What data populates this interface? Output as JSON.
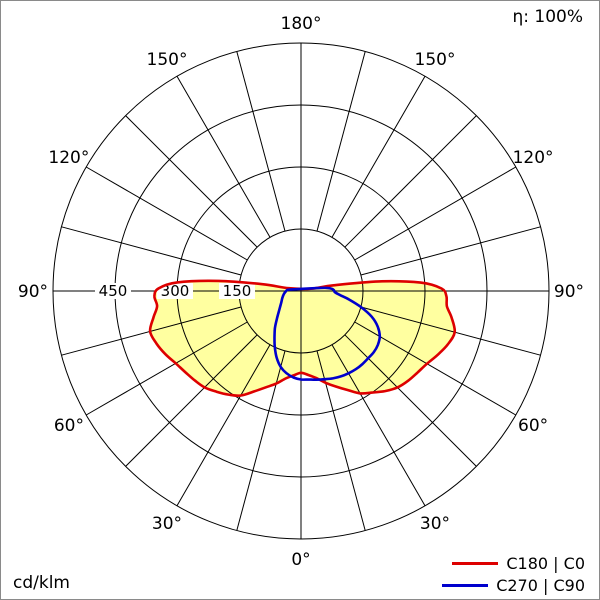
{
  "chart_data": {
    "type": "polar",
    "subtype": "luminous-intensity-distribution",
    "labels": {
      "efficiency": "η: 100%",
      "unit": "cd/klm"
    },
    "rings_cd_per_klm": [
      150,
      300,
      450,
      600
    ],
    "ring_labels": [
      "150",
      "300",
      "450"
    ],
    "grid_angle_step_deg": 15,
    "angle_labels": [
      "0°",
      "30°",
      "60°",
      "90°",
      "120°",
      "150°",
      "180°"
    ],
    "legend": [
      {
        "label": "C180 | C0",
        "color": "#dd0000"
      },
      {
        "label": "C270 | C90",
        "color": "#0000cd"
      }
    ],
    "series": [
      {
        "name": "C180 | C0",
        "color": "#dd0000",
        "fill": "#ffffa0",
        "left_gamma_intensity": [
          [
            103,
            30
          ],
          [
            100,
            95
          ],
          [
            97,
            200
          ],
          [
            94,
            300
          ],
          [
            91,
            345
          ],
          [
            88,
            355
          ],
          [
            84,
            350
          ],
          [
            80,
            362
          ],
          [
            75,
            378
          ],
          [
            70,
            372
          ],
          [
            65,
            362
          ],
          [
            60,
            350
          ],
          [
            55,
            342
          ],
          [
            50,
            336
          ],
          [
            45,
            330
          ],
          [
            40,
            318
          ],
          [
            35,
            306
          ],
          [
            30,
            292
          ],
          [
            25,
            268
          ],
          [
            20,
            248
          ],
          [
            15,
            232
          ],
          [
            10,
            215
          ],
          [
            5,
            205
          ],
          [
            0,
            198
          ]
        ],
        "right_gamma_intensity": [
          [
            103,
            25
          ],
          [
            100,
            80
          ],
          [
            97,
            190
          ],
          [
            94,
            290
          ],
          [
            91,
            340
          ],
          [
            88,
            352
          ],
          [
            84,
            355
          ],
          [
            80,
            370
          ],
          [
            75,
            385
          ],
          [
            70,
            378
          ],
          [
            65,
            365
          ],
          [
            60,
            352
          ],
          [
            55,
            344
          ],
          [
            50,
            338
          ],
          [
            45,
            330
          ],
          [
            40,
            316
          ],
          [
            35,
            300
          ],
          [
            30,
            286
          ],
          [
            25,
            264
          ],
          [
            20,
            246
          ],
          [
            15,
            230
          ],
          [
            10,
            214
          ],
          [
            5,
            204
          ],
          [
            0,
            198
          ]
        ]
      },
      {
        "name": "C270 | C90",
        "color": "#0000cd",
        "fill": null,
        "left_gamma_intensity": [
          [
            100,
            22
          ],
          [
            95,
            32
          ],
          [
            90,
            36
          ],
          [
            80,
            42
          ],
          [
            70,
            48
          ],
          [
            60,
            55
          ],
          [
            50,
            68
          ],
          [
            45,
            78
          ],
          [
            40,
            92
          ],
          [
            35,
            110
          ],
          [
            30,
            128
          ],
          [
            25,
            150
          ],
          [
            20,
            172
          ],
          [
            15,
            190
          ],
          [
            10,
            202
          ],
          [
            5,
            210
          ],
          [
            0,
            214
          ]
        ],
        "right_gamma_intensity": [
          [
            100,
            40
          ],
          [
            97,
            62
          ],
          [
            94,
            75
          ],
          [
            91,
            80
          ],
          [
            88,
            82
          ],
          [
            84,
            95
          ],
          [
            80,
            118
          ],
          [
            75,
            150
          ],
          [
            70,
            182
          ],
          [
            65,
            205
          ],
          [
            60,
            220
          ],
          [
            55,
            227
          ],
          [
            50,
            230
          ],
          [
            45,
            230
          ],
          [
            40,
            231
          ],
          [
            35,
            231
          ],
          [
            30,
            230
          ],
          [
            25,
            228
          ],
          [
            20,
            225
          ],
          [
            15,
            221
          ],
          [
            10,
            218
          ],
          [
            5,
            215
          ],
          [
            0,
            213
          ]
        ]
      }
    ]
  }
}
